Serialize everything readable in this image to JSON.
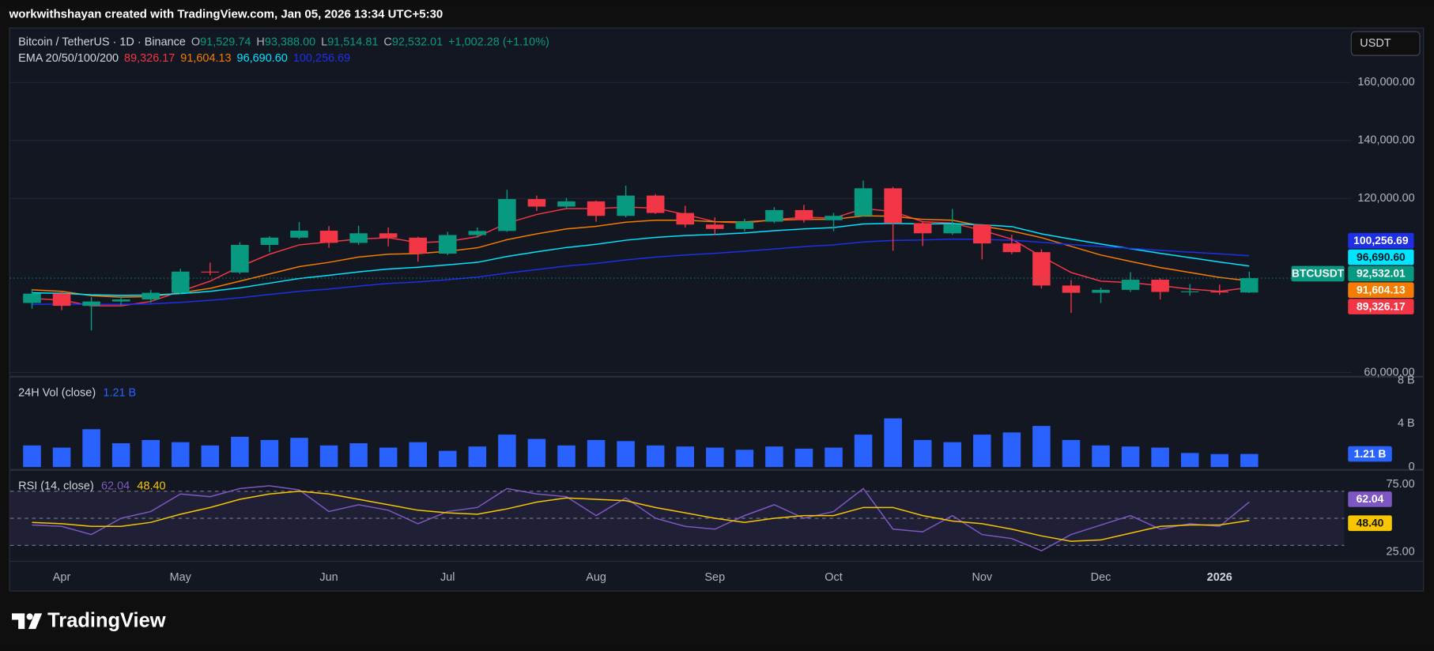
{
  "header": {
    "credit": "workwithshayan created with TradingView.com, Jan 05, 2026 13:34 UTC+5:30"
  },
  "currency": "USDT",
  "footer": {
    "brand": "TradingView"
  },
  "chart_data": [
    {
      "type": "candlestick",
      "title": "Bitcoin / TetherUS · 1D · Binance",
      "legend": [
        {
          "key": "O",
          "value": "91,529.74"
        },
        {
          "key": "H",
          "value": "93,388.00"
        },
        {
          "key": "L",
          "value": "91,514.81"
        },
        {
          "key": "C",
          "value": "92,532.01"
        }
      ],
      "change": "+1,002.28 (+1.10%)",
      "series": [
        {
          "name": "BTCUSDT",
          "up_color": "#089981",
          "down_color": "#f23645",
          "open": [
            84000,
            87200,
            83000,
            84500,
            85200,
            87500,
            94800,
            94500,
            104000,
            106500,
            108900,
            104700,
            108000,
            106500,
            101000,
            107400,
            108800,
            119800,
            117200,
            119000,
            114000,
            121000,
            115000,
            111000,
            109500,
            112000,
            116000,
            112500,
            114000,
            123500,
            111500,
            108000,
            111000,
            104500,
            101500,
            90000,
            87500,
            88500,
            92000,
            87800,
            88000,
            87600
          ],
          "high": [
            88800,
            88000,
            86000,
            86500,
            88500,
            95800,
            97900,
            104900,
            107000,
            111900,
            110500,
            110600,
            110000,
            106800,
            108500,
            110000,
            123000,
            121000,
            120200,
            119300,
            124400,
            121500,
            117500,
            113500,
            113000,
            117000,
            117800,
            115000,
            126200,
            124000,
            112000,
            116400,
            111200,
            107500,
            102500,
            91900,
            89300,
            94600,
            92500,
            90500,
            90300,
            94800
          ],
          "low": [
            82000,
            81500,
            74500,
            83000,
            84000,
            87000,
            93500,
            94000,
            101500,
            106000,
            103000,
            104000,
            103500,
            98200,
            100500,
            106500,
            108500,
            115700,
            116500,
            112000,
            113500,
            114700,
            110000,
            107300,
            108600,
            111500,
            111700,
            108700,
            113800,
            102000,
            103600,
            107500,
            99000,
            100800,
            89000,
            80600,
            84000,
            87800,
            85200,
            86500,
            86800,
            87400
          ],
          "close": [
            87200,
            83000,
            84500,
            85200,
            87500,
            94800,
            94500,
            104000,
            106500,
            108900,
            104700,
            108000,
            106500,
            101000,
            107400,
            108800,
            119800,
            117200,
            119000,
            114000,
            121000,
            115000,
            111000,
            109500,
            112000,
            116000,
            112500,
            114000,
            123500,
            111500,
            108000,
            111000,
            104500,
            101500,
            90000,
            87500,
            88500,
            92000,
            87800,
            88000,
            87600,
            92532.01
          ]
        }
      ],
      "indicator": "EMA 20/50/100/200",
      "overlays": [
        {
          "color": "#f23645",
          "last_label": "89,326.17",
          "values": [
            85500,
            85000,
            83000,
            83000,
            84500,
            88000,
            91500,
            96500,
            100800,
            104000,
            105000,
            106000,
            106500,
            104800,
            105200,
            106800,
            111500,
            114500,
            116500,
            116500,
            117000,
            116700,
            114500,
            112000,
            111500,
            112700,
            113500,
            113200,
            116500,
            115500,
            112000,
            111500,
            109000,
            106000,
            100000,
            94500,
            91500,
            91000,
            90000,
            88800,
            88000,
            89326.17
          ]
        },
        {
          "color": "#f57c00",
          "last_label": "91,604.13",
          "values": [
            88500,
            88000,
            86500,
            86000,
            86200,
            87500,
            89000,
            91500,
            94000,
            96500,
            98000,
            99800,
            100800,
            101000,
            101800,
            103000,
            105800,
            107800,
            109500,
            110400,
            111800,
            112500,
            112500,
            112000,
            111900,
            112500,
            112800,
            112800,
            114000,
            113900,
            112800,
            112500,
            110500,
            108800,
            106500,
            103500,
            100500,
            98300,
            96200,
            94500,
            92800,
            91604.13
          ]
        },
        {
          "color": "#00e5ff",
          "last_label": "96,690.60",
          "values": [
            87500,
            87300,
            86800,
            86600,
            86700,
            87200,
            88000,
            89200,
            90800,
            92400,
            93500,
            94700,
            95700,
            96300,
            97100,
            98000,
            100000,
            101600,
            103100,
            104200,
            105600,
            106600,
            107200,
            107600,
            108100,
            108900,
            109500,
            110000,
            111200,
            111400,
            111200,
            111300,
            110900,
            110300,
            107800,
            106000,
            104300,
            102700,
            101100,
            99600,
            98100,
            96690.6
          ]
        },
        {
          "color": "#1e2fe6",
          "last_label": "100,256.69",
          "values": [
            83500,
            83600,
            83500,
            83500,
            83700,
            84200,
            84900,
            85800,
            86900,
            88000,
            88800,
            89800,
            90700,
            91200,
            92000,
            92900,
            94300,
            95500,
            96700,
            97600,
            98800,
            99800,
            100500,
            101100,
            101800,
            102600,
            103400,
            104000,
            105000,
            105500,
            105700,
            106000,
            105900,
            105600,
            104900,
            104100,
            103400,
            102800,
            102100,
            101500,
            100900,
            100256.69
          ]
        }
      ],
      "ylim": [
        58900,
        178900
      ],
      "yticks": [
        {
          "value": 60000,
          "label": "60,000.00"
        },
        {
          "value": 120000,
          "label": "120,000.00"
        },
        {
          "value": 140000,
          "label": "140,000.00"
        },
        {
          "value": 160000,
          "label": "160,000.00"
        }
      ],
      "grid": true
    },
    {
      "type": "bar",
      "title": "24H Vol (close)",
      "last_label": "1.21 B",
      "color": "#2962ff",
      "values": [
        2.0,
        1.8,
        3.5,
        2.2,
        2.5,
        2.3,
        2.0,
        2.8,
        2.5,
        2.7,
        2.0,
        2.2,
        1.8,
        2.3,
        1.5,
        1.9,
        3.0,
        2.6,
        2.0,
        2.5,
        2.4,
        2.0,
        1.9,
        1.8,
        1.6,
        1.9,
        1.7,
        1.8,
        3.0,
        4.5,
        2.5,
        2.3,
        3.0,
        3.2,
        3.8,
        2.5,
        2.0,
        1.9,
        1.8,
        1.3,
        1.2,
        1.21
      ],
      "ylim": [
        -0.18,
        8.27
      ],
      "yticks": [
        0,
        {
          "value": 4,
          "label": "4 B"
        },
        {
          "value": 8,
          "label": "8 B"
        }
      ]
    },
    {
      "type": "line",
      "title": "RSI (14, close)",
      "categories": [
        null,
        "Apr",
        null,
        null,
        null,
        "May",
        null,
        null,
        null,
        null,
        "Jun",
        null,
        null,
        null,
        "Jul",
        null,
        null,
        null,
        null,
        "Aug",
        null,
        null,
        null,
        "Sep",
        null,
        null,
        null,
        "Oct",
        null,
        null,
        null,
        null,
        "Nov",
        null,
        null,
        null,
        "Dec",
        null,
        null,
        null,
        "2026",
        null
      ],
      "series": [
        {
          "color": "#7e57c2",
          "last_label": "62.04",
          "values": [
            45,
            44,
            38,
            50,
            55,
            68,
            66,
            72,
            74,
            71,
            55,
            60,
            56,
            46,
            55,
            58,
            72,
            68,
            66,
            52,
            65,
            50,
            44,
            42,
            52,
            60,
            50,
            55,
            72,
            42,
            40,
            52,
            38,
            35,
            26,
            38,
            45,
            52,
            42,
            46,
            44,
            62.04
          ]
        },
        {
          "color": "#f7c600",
          "last_label": "48.40",
          "values": [
            47,
            46,
            44,
            44,
            47,
            53,
            58,
            64,
            68,
            70,
            68,
            64,
            60,
            56,
            54,
            53,
            57,
            62,
            65,
            64,
            63,
            58,
            54,
            50,
            47,
            50,
            52,
            52,
            58,
            58,
            52,
            48,
            46,
            42,
            37,
            33,
            34,
            39,
            44,
            45,
            45,
            48.4
          ]
        }
      ],
      "levels": [
        70,
        50,
        30
      ],
      "ylim": [
        20.9,
        85.1
      ],
      "yticks": [
        {
          "value": 25,
          "label": "25.00"
        },
        {
          "value": 75,
          "label": "75.00"
        }
      ]
    }
  ]
}
